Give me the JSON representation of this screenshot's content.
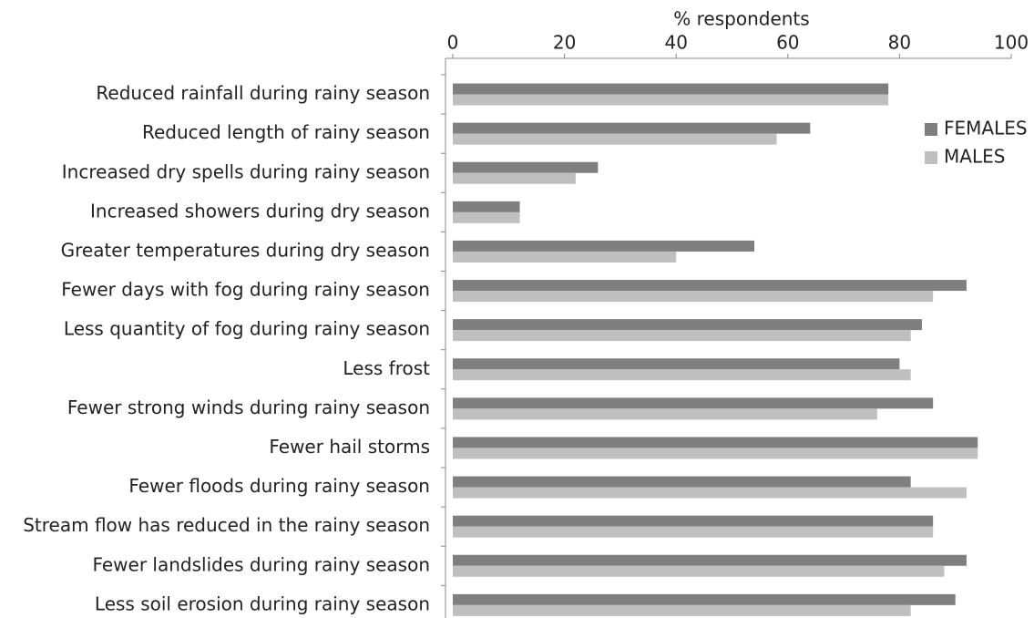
{
  "chart_data": {
    "type": "hbar",
    "x_label": "% respondents",
    "categories": [
      "Reduced rainfall during rainy season",
      "Reduced length of rainy season",
      "Increased dry spells during rainy season",
      "Increased showers during dry season",
      "Greater temperatures during dry season",
      "Fewer days with fog during rainy season",
      "Less quantity of fog during rainy season",
      "Less frost",
      "Fewer strong winds during rainy season",
      "Fewer hail storms",
      "Fewer floods during rainy season",
      "Stream flow has reduced in the rainy season",
      "Fewer landslides during rainy season",
      "Less soil erosion during rainy season"
    ],
    "series": [
      {
        "name": "FEMALES",
        "color": "#7f7f7f",
        "values": [
          78,
          64,
          26,
          12,
          54,
          92,
          84,
          80,
          86,
          94,
          82,
          86,
          92,
          90
        ]
      },
      {
        "name": "MALES",
        "color": "#bfbfbf",
        "values": [
          78,
          58,
          22,
          12,
          40,
          86,
          82,
          82,
          76,
          94,
          92,
          86,
          88,
          82
        ]
      }
    ],
    "xlim": [
      0,
      100
    ],
    "xticks": [
      0,
      20,
      40,
      60,
      80,
      100
    ],
    "legend": "top-right"
  }
}
